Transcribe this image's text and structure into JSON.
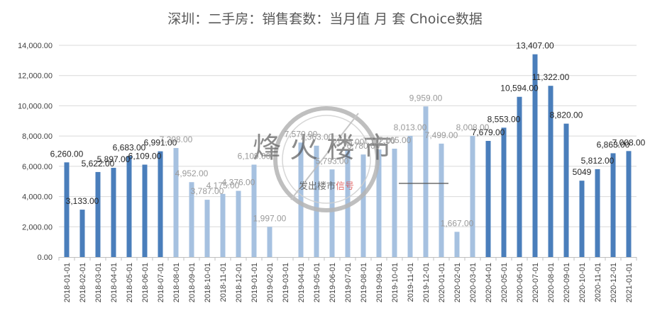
{
  "chart_data": {
    "type": "bar",
    "title": "深圳：二手房：销售套数：当月值 月 套 Choice数据",
    "xlabel": "",
    "ylabel": "",
    "ylim": [
      0,
      14000
    ],
    "yticks": [
      "0.00",
      "2,000.00",
      "4,000.00",
      "6,000.00",
      "8,000.00",
      "10,000.00",
      "12,000.00",
      "14,000.00"
    ],
    "grid": true,
    "legend": "none",
    "colors": {
      "highlight": "#4a7ebb",
      "normal": "#a6c1e0",
      "axis": "#bfbfbf",
      "grid": "#d9d9d9"
    },
    "categories": [
      "2018-01-01",
      "2018-02-01",
      "2018-03-01",
      "2018-04-01",
      "2018-05-01",
      "2018-06-01",
      "2018-07-01",
      "2018-08-01",
      "2018-09-01",
      "2018-10-01",
      "2018-11-01",
      "2018-12-01",
      "2019-01-01",
      "2019-02-01",
      "2019-03-01",
      "2019-04-01",
      "2019-05-01",
      "2019-06-01",
      "2019-07-01",
      "2019-08-01",
      "2019-09-01",
      "2019-10-01",
      "2019-11-01",
      "2019-12-01",
      "2020-01-01",
      "2020-02-01",
      "2020-03-01",
      "2020-04-01",
      "2020-05-01",
      "2020-06-01",
      "2020-07-01",
      "2020-08-01",
      "2020-09-01",
      "2020-10-01",
      "2020-11-01",
      "2020-12-01",
      "2021-01-01"
    ],
    "values": [
      6260,
      3133,
      5622,
      5897,
      6683,
      6109,
      6991,
      7208,
      4952,
      3787,
      4175,
      4376,
      6109,
      1997,
      null,
      7570,
      7363,
      5793,
      7048,
      6780,
      7112,
      7165,
      8013,
      9959,
      7499,
      1667,
      8008,
      7679,
      8553,
      10594,
      13407,
      11322,
      8820,
      5049,
      5812,
      6863,
      7008
    ],
    "labels": [
      "6,260.00",
      "3,133.00",
      "5,622.00",
      "5,897.00",
      "6,683.00",
      "6,109.00",
      "6,991.00",
      "7,208.00",
      "4,952.00",
      "3,787.00",
      "4,175.00",
      "4,376.00",
      "6,109.00",
      "1,997.00",
      "",
      "7,570.00",
      "7,363.00",
      "5,793.00",
      "7,048.00",
      "6,780.00",
      "7,112.00",
      "7,165.00",
      "8,013.00",
      "9,959.00",
      "7,499.00",
      "1,667.00",
      "8,008.00",
      "7,679.00",
      "8,553.00",
      "10,594.00",
      "13,407.00",
      "11,322.00",
      "8,820.00",
      "5049",
      "5,812.00",
      "6,863.00",
      "7,008.00"
    ],
    "highlighted": [
      true,
      true,
      true,
      true,
      true,
      true,
      true,
      false,
      false,
      false,
      false,
      false,
      false,
      false,
      false,
      false,
      false,
      false,
      false,
      false,
      false,
      false,
      false,
      false,
      false,
      false,
      false,
      true,
      true,
      true,
      true,
      true,
      true,
      true,
      true,
      true,
      true
    ]
  },
  "watermark": {
    "brand": "烽火楼市",
    "sub_prefix": "发出楼市",
    "sub_accent": "信号",
    "accent_color": "#e05a5a"
  }
}
